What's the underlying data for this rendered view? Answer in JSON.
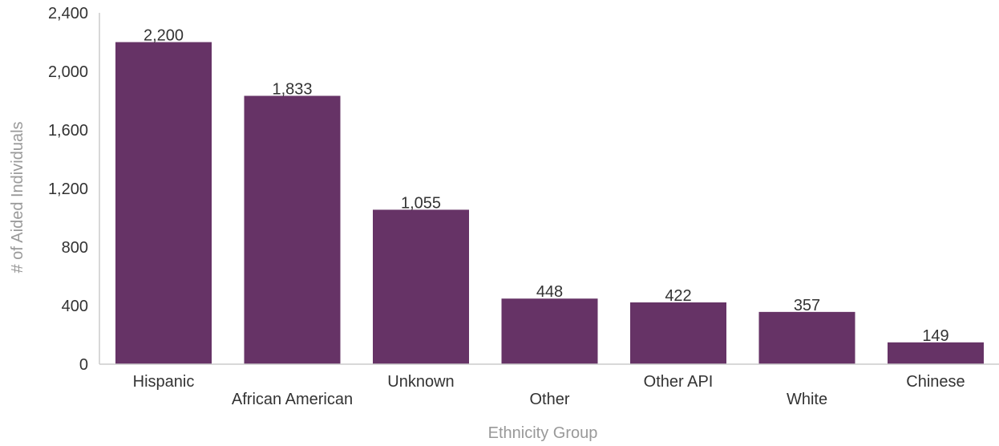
{
  "chart_data": {
    "type": "bar",
    "title": "",
    "xlabel": "Ethnicity Group",
    "ylabel": "# of Aided Individuals",
    "categories": [
      "Hispanic",
      "African American",
      "Unknown",
      "Other",
      "Other API",
      "White",
      "Chinese"
    ],
    "values": [
      2200,
      1833,
      1055,
      448,
      422,
      357,
      149
    ],
    "value_labels": [
      "2,200",
      "1,833",
      "1,055",
      "448",
      "422",
      "357",
      "149"
    ],
    "yticks": [
      0,
      400,
      800,
      1200,
      1600,
      2000,
      2400
    ],
    "ytick_labels": [
      "0",
      "400",
      "800",
      "1,200",
      "1,600",
      "2,000",
      "2,400"
    ],
    "ylim": [
      0,
      2400
    ],
    "grid": false,
    "bar_color": "#663366",
    "axis_color": "#cccccc",
    "label_staggering": "alternating"
  }
}
